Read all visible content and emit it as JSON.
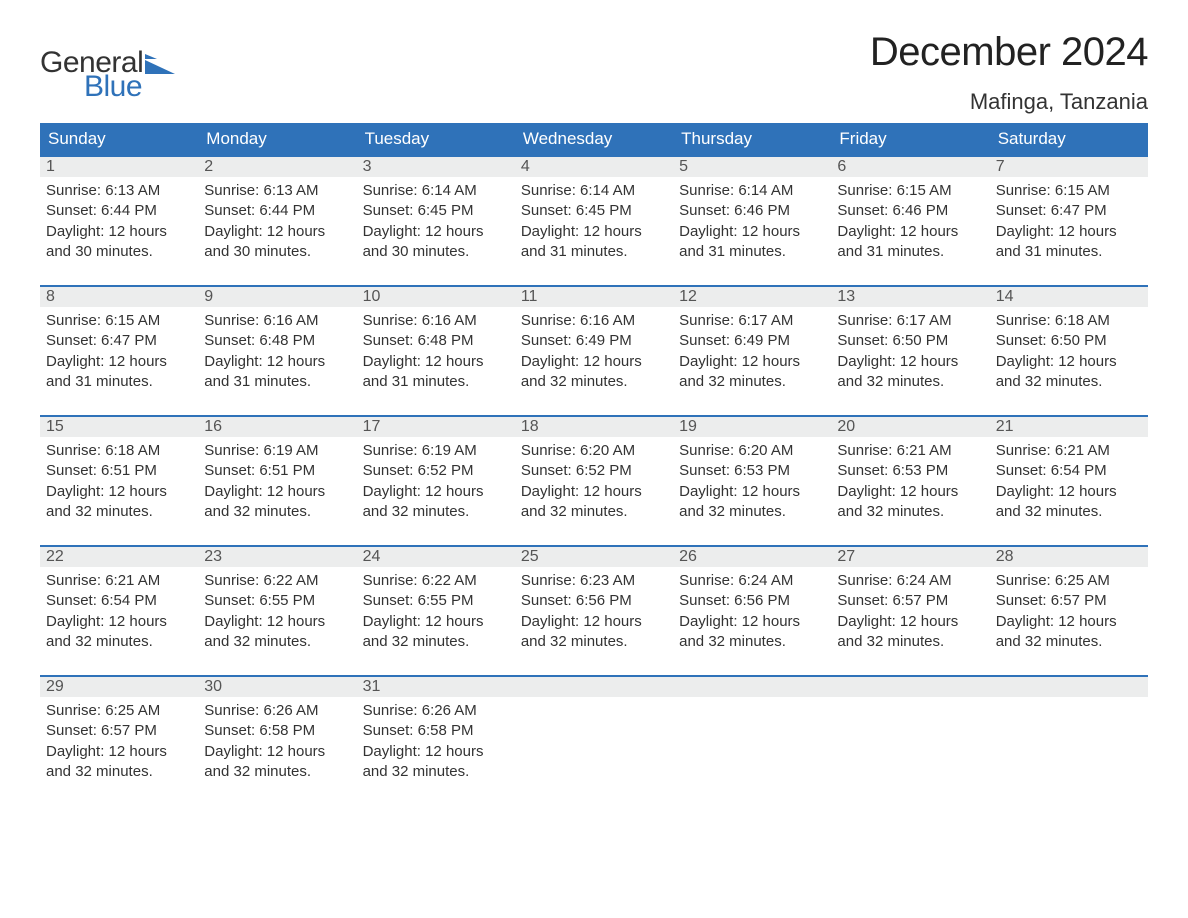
{
  "logo": {
    "text_top": "General",
    "text_bottom": "Blue",
    "top_color": "#333333",
    "bottom_color": "#2f72b9",
    "shape_color": "#2f72b9"
  },
  "title": "December 2024",
  "location": "Mafinga, Tanzania",
  "colors": {
    "header_bg": "#2f72b9",
    "header_text": "#ffffff",
    "daynum_bg": "#eceded",
    "daynum_border": "#2f72b9",
    "body_text": "#333333",
    "background": "#ffffff"
  },
  "fonts": {
    "title_size_pt": 40,
    "location_size_pt": 22,
    "header_size_pt": 17,
    "daynum_size_pt": 16,
    "body_size_pt": 15
  },
  "day_headers": [
    "Sunday",
    "Monday",
    "Tuesday",
    "Wednesday",
    "Thursday",
    "Friday",
    "Saturday"
  ],
  "weeks": [
    [
      {
        "n": "1",
        "sunrise": "Sunrise: 6:13 AM",
        "sunset": "Sunset: 6:44 PM",
        "d1": "Daylight: 12 hours",
        "d2": "and 30 minutes."
      },
      {
        "n": "2",
        "sunrise": "Sunrise: 6:13 AM",
        "sunset": "Sunset: 6:44 PM",
        "d1": "Daylight: 12 hours",
        "d2": "and 30 minutes."
      },
      {
        "n": "3",
        "sunrise": "Sunrise: 6:14 AM",
        "sunset": "Sunset: 6:45 PM",
        "d1": "Daylight: 12 hours",
        "d2": "and 30 minutes."
      },
      {
        "n": "4",
        "sunrise": "Sunrise: 6:14 AM",
        "sunset": "Sunset: 6:45 PM",
        "d1": "Daylight: 12 hours",
        "d2": "and 31 minutes."
      },
      {
        "n": "5",
        "sunrise": "Sunrise: 6:14 AM",
        "sunset": "Sunset: 6:46 PM",
        "d1": "Daylight: 12 hours",
        "d2": "and 31 minutes."
      },
      {
        "n": "6",
        "sunrise": "Sunrise: 6:15 AM",
        "sunset": "Sunset: 6:46 PM",
        "d1": "Daylight: 12 hours",
        "d2": "and 31 minutes."
      },
      {
        "n": "7",
        "sunrise": "Sunrise: 6:15 AM",
        "sunset": "Sunset: 6:47 PM",
        "d1": "Daylight: 12 hours",
        "d2": "and 31 minutes."
      }
    ],
    [
      {
        "n": "8",
        "sunrise": "Sunrise: 6:15 AM",
        "sunset": "Sunset: 6:47 PM",
        "d1": "Daylight: 12 hours",
        "d2": "and 31 minutes."
      },
      {
        "n": "9",
        "sunrise": "Sunrise: 6:16 AM",
        "sunset": "Sunset: 6:48 PM",
        "d1": "Daylight: 12 hours",
        "d2": "and 31 minutes."
      },
      {
        "n": "10",
        "sunrise": "Sunrise: 6:16 AM",
        "sunset": "Sunset: 6:48 PM",
        "d1": "Daylight: 12 hours",
        "d2": "and 31 minutes."
      },
      {
        "n": "11",
        "sunrise": "Sunrise: 6:16 AM",
        "sunset": "Sunset: 6:49 PM",
        "d1": "Daylight: 12 hours",
        "d2": "and 32 minutes."
      },
      {
        "n": "12",
        "sunrise": "Sunrise: 6:17 AM",
        "sunset": "Sunset: 6:49 PM",
        "d1": "Daylight: 12 hours",
        "d2": "and 32 minutes."
      },
      {
        "n": "13",
        "sunrise": "Sunrise: 6:17 AM",
        "sunset": "Sunset: 6:50 PM",
        "d1": "Daylight: 12 hours",
        "d2": "and 32 minutes."
      },
      {
        "n": "14",
        "sunrise": "Sunrise: 6:18 AM",
        "sunset": "Sunset: 6:50 PM",
        "d1": "Daylight: 12 hours",
        "d2": "and 32 minutes."
      }
    ],
    [
      {
        "n": "15",
        "sunrise": "Sunrise: 6:18 AM",
        "sunset": "Sunset: 6:51 PM",
        "d1": "Daylight: 12 hours",
        "d2": "and 32 minutes."
      },
      {
        "n": "16",
        "sunrise": "Sunrise: 6:19 AM",
        "sunset": "Sunset: 6:51 PM",
        "d1": "Daylight: 12 hours",
        "d2": "and 32 minutes."
      },
      {
        "n": "17",
        "sunrise": "Sunrise: 6:19 AM",
        "sunset": "Sunset: 6:52 PM",
        "d1": "Daylight: 12 hours",
        "d2": "and 32 minutes."
      },
      {
        "n": "18",
        "sunrise": "Sunrise: 6:20 AM",
        "sunset": "Sunset: 6:52 PM",
        "d1": "Daylight: 12 hours",
        "d2": "and 32 minutes."
      },
      {
        "n": "19",
        "sunrise": "Sunrise: 6:20 AM",
        "sunset": "Sunset: 6:53 PM",
        "d1": "Daylight: 12 hours",
        "d2": "and 32 minutes."
      },
      {
        "n": "20",
        "sunrise": "Sunrise: 6:21 AM",
        "sunset": "Sunset: 6:53 PM",
        "d1": "Daylight: 12 hours",
        "d2": "and 32 minutes."
      },
      {
        "n": "21",
        "sunrise": "Sunrise: 6:21 AM",
        "sunset": "Sunset: 6:54 PM",
        "d1": "Daylight: 12 hours",
        "d2": "and 32 minutes."
      }
    ],
    [
      {
        "n": "22",
        "sunrise": "Sunrise: 6:21 AM",
        "sunset": "Sunset: 6:54 PM",
        "d1": "Daylight: 12 hours",
        "d2": "and 32 minutes."
      },
      {
        "n": "23",
        "sunrise": "Sunrise: 6:22 AM",
        "sunset": "Sunset: 6:55 PM",
        "d1": "Daylight: 12 hours",
        "d2": "and 32 minutes."
      },
      {
        "n": "24",
        "sunrise": "Sunrise: 6:22 AM",
        "sunset": "Sunset: 6:55 PM",
        "d1": "Daylight: 12 hours",
        "d2": "and 32 minutes."
      },
      {
        "n": "25",
        "sunrise": "Sunrise: 6:23 AM",
        "sunset": "Sunset: 6:56 PM",
        "d1": "Daylight: 12 hours",
        "d2": "and 32 minutes."
      },
      {
        "n": "26",
        "sunrise": "Sunrise: 6:24 AM",
        "sunset": "Sunset: 6:56 PM",
        "d1": "Daylight: 12 hours",
        "d2": "and 32 minutes."
      },
      {
        "n": "27",
        "sunrise": "Sunrise: 6:24 AM",
        "sunset": "Sunset: 6:57 PM",
        "d1": "Daylight: 12 hours",
        "d2": "and 32 minutes."
      },
      {
        "n": "28",
        "sunrise": "Sunrise: 6:25 AM",
        "sunset": "Sunset: 6:57 PM",
        "d1": "Daylight: 12 hours",
        "d2": "and 32 minutes."
      }
    ],
    [
      {
        "n": "29",
        "sunrise": "Sunrise: 6:25 AM",
        "sunset": "Sunset: 6:57 PM",
        "d1": "Daylight: 12 hours",
        "d2": "and 32 minutes."
      },
      {
        "n": "30",
        "sunrise": "Sunrise: 6:26 AM",
        "sunset": "Sunset: 6:58 PM",
        "d1": "Daylight: 12 hours",
        "d2": "and 32 minutes."
      },
      {
        "n": "31",
        "sunrise": "Sunrise: 6:26 AM",
        "sunset": "Sunset: 6:58 PM",
        "d1": "Daylight: 12 hours",
        "d2": "and 32 minutes."
      },
      null,
      null,
      null,
      null
    ]
  ]
}
